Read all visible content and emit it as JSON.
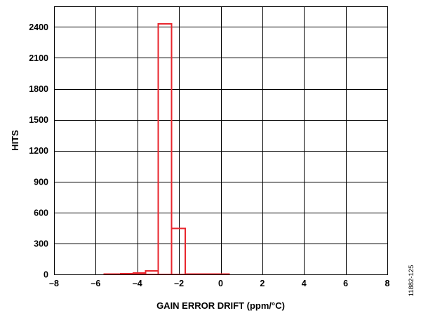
{
  "chart_data": {
    "type": "bar",
    "style": "step histogram, unfilled outlines",
    "bar_color": "#e8262d",
    "xlabel": "GAIN ERROR DRIFT (ppm/°C)",
    "ylabel": "HITS",
    "xlim": [
      -8,
      8
    ],
    "ylim": [
      0,
      2600
    ],
    "xticks": [
      -8,
      -6,
      -4,
      -2,
      0,
      2,
      4,
      6,
      8
    ],
    "xtick_labels": [
      "–8",
      "–6",
      "–4",
      "–2",
      "0",
      "2",
      "4",
      "6",
      "8"
    ],
    "yticks": [
      0,
      300,
      600,
      900,
      1200,
      1500,
      1800,
      2100,
      2400
    ],
    "ytick_labels": [
      "0",
      "300",
      "600",
      "900",
      "1200",
      "1500",
      "1800",
      "2100",
      "2400"
    ],
    "grid": true,
    "bins": [
      {
        "x0": -5.6,
        "x1": -4.8,
        "value": 3
      },
      {
        "x0": -4.8,
        "x1": -4.2,
        "value": 8
      },
      {
        "x0": -4.2,
        "x1": -3.6,
        "value": 14
      },
      {
        "x0": -3.6,
        "x1": -3.0,
        "value": 35
      },
      {
        "x0": -3.0,
        "x1": -2.35,
        "value": 2430
      },
      {
        "x0": -2.35,
        "x1": -1.7,
        "value": 445
      },
      {
        "x0": -1.7,
        "x1": -1.1,
        "value": 5
      },
      {
        "x0": -1.1,
        "x1": -0.5,
        "value": 3
      },
      {
        "x0": -0.5,
        "x1": 0.4,
        "value": 2
      }
    ]
  },
  "figure_id": "11882-125"
}
